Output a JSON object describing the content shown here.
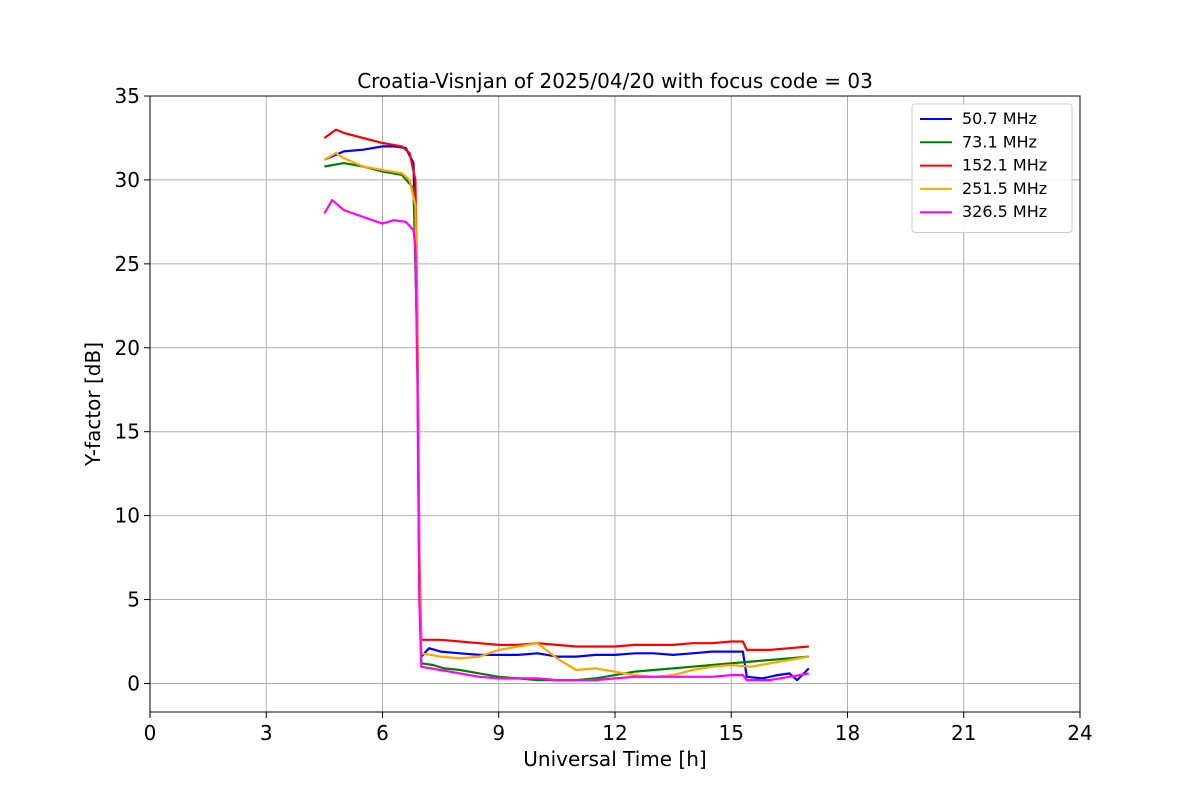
{
  "chart_data": {
    "type": "line",
    "title": "Croatia-Visnjan of 2025/04/20 with focus code = 03",
    "xlabel": "Universal Time [h]",
    "ylabel": "Y-factor [dB]",
    "xlim": [
      0,
      24
    ],
    "ylim": [
      -1.7,
      35
    ],
    "xticks": [
      0,
      3,
      6,
      9,
      12,
      15,
      18,
      21,
      24
    ],
    "yticks": [
      0,
      5,
      10,
      15,
      20,
      25,
      30,
      35
    ],
    "grid": true,
    "legend_position": "top-right",
    "series": [
      {
        "name": " 50.7 MHz",
        "color": "#0000ff",
        "x": [
          4.5,
          5.0,
          5.5,
          6.0,
          6.3,
          6.6,
          6.8,
          6.9,
          6.95,
          7.0,
          7.2,
          7.5,
          8.0,
          8.5,
          9.0,
          9.5,
          10.0,
          10.5,
          11.0,
          11.5,
          12.0,
          12.5,
          13.0,
          13.5,
          14.0,
          14.5,
          15.0,
          15.3,
          15.4,
          15.8,
          16.2,
          16.5,
          16.7,
          17.0
        ],
        "y": [
          31.2,
          31.7,
          31.8,
          32.0,
          32.0,
          31.9,
          31.0,
          20.0,
          6.0,
          1.6,
          2.1,
          1.9,
          1.8,
          1.7,
          1.7,
          1.7,
          1.8,
          1.6,
          1.6,
          1.7,
          1.7,
          1.8,
          1.8,
          1.7,
          1.8,
          1.9,
          1.9,
          1.9,
          0.4,
          0.3,
          0.5,
          0.6,
          0.2,
          0.9
        ]
      },
      {
        "name": " 73.1 MHz",
        "color": "#008000",
        "x": [
          4.5,
          5.0,
          5.5,
          6.0,
          6.5,
          6.8,
          6.9,
          6.95,
          7.0,
          7.3,
          7.6,
          8.0,
          8.5,
          9.0,
          9.5,
          10.0,
          10.5,
          11.0,
          11.5,
          12.0,
          12.5,
          13.0,
          13.5,
          14.0,
          14.5,
          15.0,
          15.5,
          16.0,
          16.5,
          17.0
        ],
        "y": [
          30.8,
          31.0,
          30.8,
          30.5,
          30.3,
          29.5,
          20.0,
          6.0,
          1.2,
          1.1,
          0.9,
          0.8,
          0.6,
          0.4,
          0.3,
          0.2,
          0.2,
          0.2,
          0.3,
          0.5,
          0.7,
          0.8,
          0.9,
          1.0,
          1.1,
          1.2,
          1.3,
          1.4,
          1.5,
          1.6
        ]
      },
      {
        "name": " 152.1 MHz",
        "color": "#ff0000",
        "x": [
          4.5,
          4.8,
          5.0,
          5.5,
          6.0,
          6.5,
          6.7,
          6.85,
          6.9,
          6.95,
          7.0,
          7.5,
          8.0,
          8.5,
          9.0,
          9.5,
          10.0,
          10.5,
          11.0,
          11.5,
          12.0,
          12.5,
          13.0,
          13.5,
          14.0,
          14.5,
          15.0,
          15.3,
          15.4,
          16.0,
          16.5,
          17.0
        ],
        "y": [
          32.5,
          33.0,
          32.8,
          32.5,
          32.2,
          32.0,
          31.6,
          30.0,
          22.0,
          8.0,
          2.6,
          2.6,
          2.5,
          2.4,
          2.3,
          2.3,
          2.4,
          2.3,
          2.2,
          2.2,
          2.2,
          2.3,
          2.3,
          2.3,
          2.4,
          2.4,
          2.5,
          2.5,
          2.0,
          2.0,
          2.1,
          2.2
        ]
      },
      {
        "name": " 251.5 MHz",
        "color": "#ffa500",
        "x": [
          4.5,
          4.8,
          5.0,
          5.5,
          6.0,
          6.5,
          6.7,
          6.85,
          6.9,
          6.95,
          7.0,
          7.5,
          8.0,
          8.5,
          9.0,
          9.5,
          10.0,
          10.5,
          11.0,
          11.5,
          12.0,
          12.5,
          13.0,
          13.5,
          14.0,
          14.5,
          15.0,
          15.5,
          16.0,
          16.5,
          17.0
        ],
        "y": [
          31.2,
          31.6,
          31.3,
          30.8,
          30.6,
          30.4,
          30.0,
          28.5,
          21.0,
          7.0,
          1.8,
          1.6,
          1.5,
          1.6,
          2.0,
          2.2,
          2.4,
          1.5,
          0.8,
          0.9,
          0.7,
          0.5,
          0.4,
          0.5,
          0.8,
          1.0,
          1.1,
          1.0,
          1.2,
          1.4,
          1.6
        ]
      },
      {
        "name": " 326.5 MHz",
        "color": "#ff00ff",
        "x": [
          4.5,
          4.7,
          5.0,
          5.5,
          6.0,
          6.3,
          6.6,
          6.8,
          6.85,
          6.9,
          6.95,
          7.0,
          7.5,
          8.0,
          8.5,
          9.0,
          9.5,
          10.0,
          10.5,
          11.0,
          11.5,
          12.0,
          12.5,
          13.0,
          13.5,
          14.0,
          14.5,
          15.0,
          15.3,
          15.4,
          16.0,
          16.5,
          17.0
        ],
        "y": [
          28.0,
          28.8,
          28.2,
          27.8,
          27.4,
          27.6,
          27.5,
          27.0,
          26.0,
          18.0,
          5.0,
          1.0,
          0.8,
          0.6,
          0.4,
          0.3,
          0.3,
          0.3,
          0.2,
          0.2,
          0.2,
          0.3,
          0.4,
          0.4,
          0.4,
          0.4,
          0.4,
          0.5,
          0.5,
          0.2,
          0.2,
          0.4,
          0.6
        ]
      }
    ]
  }
}
